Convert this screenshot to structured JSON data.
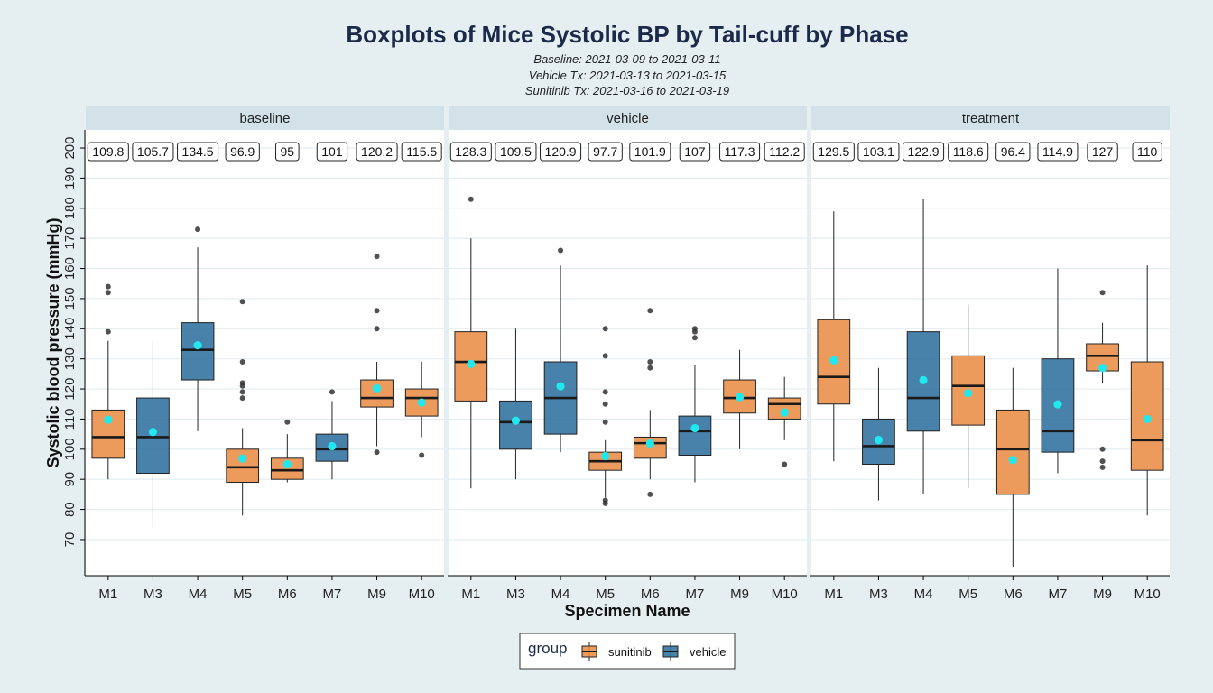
{
  "chart_data": {
    "type": "boxplot",
    "title": "Boxplots of Mice Systolic BP by Tail-cuff by Phase",
    "subtitles": [
      "Baseline: 2021-03-09 to 2021-03-11",
      "Vehicle Tx: 2021-03-13 to 2021-03-15",
      "Sunitinib Tx: 2021-03-16 to 2021-03-19"
    ],
    "xlabel": "Specimen Name",
    "ylabel": "Systolic blood pressure (mmHg)",
    "ylim": [
      58,
      206
    ],
    "yticks": [
      70,
      80,
      90,
      100,
      110,
      120,
      130,
      140,
      150,
      160,
      170,
      180,
      190,
      200
    ],
    "categories": [
      "M1",
      "M3",
      "M4",
      "M5",
      "M6",
      "M7",
      "M9",
      "M10"
    ],
    "group_of": {
      "M1": "sunitinib",
      "M3": "vehicle",
      "M4": "vehicle",
      "M5": "sunitinib",
      "M6": "sunitinib",
      "M7": "vehicle",
      "M9": "sunitinib",
      "M10": "sunitinib"
    },
    "colors": {
      "sunitinib": "#ea8d45",
      "vehicle": "#2f6f9e",
      "mean": "#21e8ee",
      "outlier": "#333333",
      "panel": "#ffffff",
      "strip": "#d2e2e8"
    },
    "legend": {
      "title": "group",
      "position": "bottom",
      "entries": [
        "sunitinib",
        "vehicle"
      ]
    },
    "grid": true,
    "panels": [
      {
        "name": "baseline",
        "boxes": [
          {
            "cat": "M1",
            "low": 90,
            "q1": 97,
            "median": 104,
            "q3": 113,
            "high": 136,
            "mean": 109.8,
            "outliers": [
              139,
              152,
              154
            ]
          },
          {
            "cat": "M3",
            "low": 74,
            "q1": 92,
            "median": 104,
            "q3": 117,
            "high": 136,
            "mean": 105.7,
            "outliers": []
          },
          {
            "cat": "M4",
            "low": 106,
            "q1": 123,
            "median": 133,
            "q3": 142,
            "high": 167,
            "mean": 134.5,
            "outliers": [
              173
            ]
          },
          {
            "cat": "M5",
            "low": 78,
            "q1": 89,
            "median": 94,
            "q3": 100,
            "high": 107,
            "mean": 96.9,
            "outliers": [
              117,
              119,
              121,
              122,
              129,
              149
            ]
          },
          {
            "cat": "M6",
            "low": 89,
            "q1": 90,
            "median": 93,
            "q3": 97,
            "high": 105,
            "mean": 95,
            "outliers": [
              109
            ]
          },
          {
            "cat": "M7",
            "low": 90,
            "q1": 96,
            "median": 100,
            "q3": 105,
            "high": 116,
            "mean": 101,
            "outliers": [
              119
            ]
          },
          {
            "cat": "M9",
            "low": 101,
            "q1": 114,
            "median": 117,
            "q3": 123,
            "high": 129,
            "mean": 120.2,
            "outliers": [
              99,
              140,
              146,
              164
            ]
          },
          {
            "cat": "M10",
            "low": 104,
            "q1": 111,
            "median": 117,
            "q3": 120,
            "high": 129,
            "mean": 115.5,
            "outliers": [
              98
            ]
          }
        ]
      },
      {
        "name": "vehicle",
        "boxes": [
          {
            "cat": "M1",
            "low": 87,
            "q1": 116,
            "median": 129,
            "q3": 139,
            "high": 170,
            "mean": 128.3,
            "outliers": [
              183
            ]
          },
          {
            "cat": "M3",
            "low": 90,
            "q1": 100,
            "median": 109,
            "q3": 116,
            "high": 140,
            "mean": 109.5,
            "outliers": []
          },
          {
            "cat": "M4",
            "low": 99,
            "q1": 105,
            "median": 117,
            "q3": 129,
            "high": 161,
            "mean": 120.9,
            "outliers": [
              166
            ]
          },
          {
            "cat": "M5",
            "low": 84,
            "q1": 93,
            "median": 96,
            "q3": 99,
            "high": 103,
            "mean": 97.7,
            "outliers": [
              82,
              83,
              109,
              115,
              119,
              131,
              140
            ]
          },
          {
            "cat": "M6",
            "low": 90,
            "q1": 97,
            "median": 102,
            "q3": 104,
            "high": 113,
            "mean": 101.9,
            "outliers": [
              85,
              127,
              129,
              146
            ]
          },
          {
            "cat": "M7",
            "low": 89,
            "q1": 98,
            "median": 106,
            "q3": 111,
            "high": 128,
            "mean": 107,
            "outliers": [
              137,
              139,
              140
            ]
          },
          {
            "cat": "M9",
            "low": 100,
            "q1": 112,
            "median": 117,
            "q3": 123,
            "high": 133,
            "mean": 117.3,
            "outliers": []
          },
          {
            "cat": "M10",
            "low": 103,
            "q1": 110,
            "median": 115,
            "q3": 117,
            "high": 124,
            "mean": 112.2,
            "outliers": [
              95
            ]
          }
        ]
      },
      {
        "name": "treatment",
        "boxes": [
          {
            "cat": "M1",
            "low": 96,
            "q1": 115,
            "median": 124,
            "q3": 143,
            "high": 179,
            "mean": 129.5,
            "outliers": []
          },
          {
            "cat": "M3",
            "low": 83,
            "q1": 95,
            "median": 101,
            "q3": 110,
            "high": 127,
            "mean": 103.1,
            "outliers": []
          },
          {
            "cat": "M4",
            "low": 85,
            "q1": 106,
            "median": 117,
            "q3": 139,
            "high": 183,
            "mean": 122.9,
            "outliers": []
          },
          {
            "cat": "M5",
            "low": 87,
            "q1": 108,
            "median": 121,
            "q3": 131,
            "high": 148,
            "mean": 118.6,
            "outliers": []
          },
          {
            "cat": "M6",
            "low": 61,
            "q1": 85,
            "median": 100,
            "q3": 113,
            "high": 127,
            "mean": 96.4,
            "outliers": []
          },
          {
            "cat": "M7",
            "low": 92,
            "q1": 99,
            "median": 106,
            "q3": 130,
            "high": 160,
            "mean": 114.9,
            "outliers": []
          },
          {
            "cat": "M9",
            "low": 122,
            "q1": 126,
            "median": 131,
            "q3": 135,
            "high": 142,
            "mean": 127,
            "outliers": [
              94,
              96,
              100,
              152
            ]
          },
          {
            "cat": "M10",
            "low": 78,
            "q1": 93,
            "median": 103,
            "q3": 129,
            "high": 161,
            "mean": 110,
            "outliers": []
          }
        ]
      }
    ]
  }
}
